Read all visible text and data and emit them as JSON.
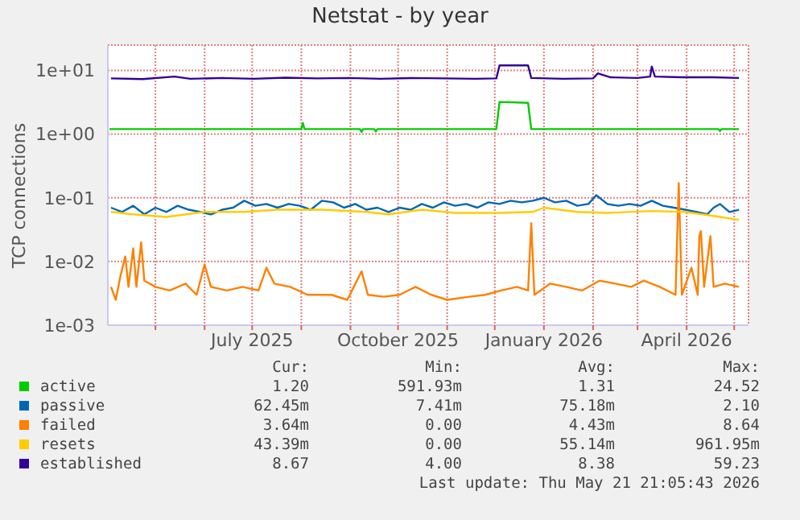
{
  "chart_data": {
    "type": "line",
    "title": "Netstat - by year",
    "ylabel": "TCP connections",
    "log": true,
    "grid": true,
    "legend": "bottom",
    "xlim": [
      "2025-04-01",
      "2026-05-10"
    ],
    "xticks": [
      {
        "value": "2025-05",
        "label": null
      },
      {
        "value": "2025-06",
        "label": null
      },
      {
        "value": "2025-07",
        "label": "July 2025"
      },
      {
        "value": "2025-08",
        "label": null
      },
      {
        "value": "2025-09",
        "label": null
      },
      {
        "value": "2025-10",
        "label": "October 2025"
      },
      {
        "value": "2025-11",
        "label": null
      },
      {
        "value": "2025-12",
        "label": null
      },
      {
        "value": "2026-01",
        "label": "January 2026"
      },
      {
        "value": "2026-02",
        "label": null
      },
      {
        "value": "2026-03",
        "label": null
      },
      {
        "value": "2026-04",
        "label": "April 2026"
      },
      {
        "value": "2026-05",
        "label": null
      }
    ],
    "ylim": [
      0.001,
      25
    ],
    "yticks": [
      {
        "value": 0.001,
        "label": "1e-03"
      },
      {
        "value": 0.01,
        "label": "1e-02"
      },
      {
        "value": 0.1,
        "label": "1e-01"
      },
      {
        "value": 1,
        "label": "1e+00"
      },
      {
        "value": 10,
        "label": "1e+01"
      }
    ],
    "series": [
      {
        "name": "active",
        "color": "#00cc00",
        "x": [
          "2025-04-02",
          "2025-08-01",
          "2025-08-02",
          "2025-08-03",
          "2025-09-07",
          "2025-09-08",
          "2025-09-09",
          "2025-09-16",
          "2025-09-17",
          "2025-09-18",
          "2025-12-02",
          "2025-12-04",
          "2025-12-22",
          "2025-12-24",
          "2026-04-21",
          "2026-04-22",
          "2026-04-23",
          "2026-05-04"
        ],
        "values": [
          1.2,
          1.2,
          1.5,
          1.2,
          1.2,
          1.08,
          1.2,
          1.2,
          1.1,
          1.2,
          1.2,
          3.2,
          3.1,
          1.2,
          1.2,
          1.12,
          1.2,
          1.2
        ]
      },
      {
        "name": "passive",
        "color": "#0066b3",
        "x": [
          "2025-04-03",
          "2025-04-10",
          "2025-04-17",
          "2025-04-24",
          "2025-05-01",
          "2025-05-08",
          "2025-05-15",
          "2025-05-22",
          "2025-05-29",
          "2025-06-05",
          "2025-06-12",
          "2025-06-19",
          "2025-06-26",
          "2025-07-03",
          "2025-07-10",
          "2025-07-17",
          "2025-07-24",
          "2025-07-31",
          "2025-08-07",
          "2025-08-14",
          "2025-08-21",
          "2025-08-28",
          "2025-09-04",
          "2025-09-11",
          "2025-09-18",
          "2025-09-25",
          "2025-10-02",
          "2025-10-09",
          "2025-10-16",
          "2025-10-23",
          "2025-10-30",
          "2025-11-06",
          "2025-11-13",
          "2025-11-20",
          "2025-11-27",
          "2025-12-04",
          "2025-12-11",
          "2025-12-18",
          "2025-12-25",
          "2026-01-01",
          "2026-01-08",
          "2026-01-15",
          "2026-01-22",
          "2026-01-29",
          "2026-02-03",
          "2026-02-10",
          "2026-02-17",
          "2026-02-24",
          "2026-03-03",
          "2026-03-10",
          "2026-03-17",
          "2026-03-24",
          "2026-03-31",
          "2026-04-07",
          "2026-04-14",
          "2026-04-18",
          "2026-04-22",
          "2026-04-28",
          "2026-05-04"
        ],
        "values": [
          0.07,
          0.06,
          0.075,
          0.055,
          0.07,
          0.06,
          0.075,
          0.065,
          0.06,
          0.055,
          0.065,
          0.07,
          0.09,
          0.075,
          0.08,
          0.07,
          0.08,
          0.075,
          0.065,
          0.09,
          0.085,
          0.07,
          0.08,
          0.065,
          0.07,
          0.06,
          0.07,
          0.065,
          0.08,
          0.07,
          0.085,
          0.075,
          0.08,
          0.07,
          0.085,
          0.08,
          0.09,
          0.085,
          0.09,
          0.1,
          0.085,
          0.09,
          0.075,
          0.08,
          0.11,
          0.08,
          0.075,
          0.08,
          0.075,
          0.09,
          0.075,
          0.07,
          0.065,
          0.06,
          0.055,
          0.07,
          0.08,
          0.06,
          0.065
        ]
      },
      {
        "name": "failed",
        "color": "#ff8000",
        "x": [
          "2025-04-03",
          "2025-04-06",
          "2025-04-09",
          "2025-04-12",
          "2025-04-14",
          "2025-04-17",
          "2025-04-19",
          "2025-04-22",
          "2025-04-24",
          "2025-05-01",
          "2025-05-10",
          "2025-05-20",
          "2025-05-27",
          "2025-06-01",
          "2025-06-05",
          "2025-06-15",
          "2025-06-25",
          "2025-07-05",
          "2025-07-10",
          "2025-07-15",
          "2025-07-25",
          "2025-08-05",
          "2025-08-20",
          "2025-08-30",
          "2025-09-08",
          "2025-09-12",
          "2025-09-22",
          "2025-10-02",
          "2025-10-12",
          "2025-10-22",
          "2025-11-01",
          "2025-11-15",
          "2025-11-25",
          "2025-12-05",
          "2025-12-15",
          "2025-12-22",
          "2025-12-24",
          "2025-12-26",
          "2026-01-05",
          "2026-01-15",
          "2026-01-25",
          "2026-02-05",
          "2026-02-15",
          "2026-02-25",
          "2026-03-05",
          "2026-03-15",
          "2026-03-25",
          "2026-03-27",
          "2026-03-29",
          "2026-04-04",
          "2026-04-08",
          "2026-04-09",
          "2026-04-10",
          "2026-04-12",
          "2026-04-16",
          "2026-04-18",
          "2026-04-25",
          "2026-05-04"
        ],
        "values": [
          0.004,
          0.0025,
          0.006,
          0.012,
          0.004,
          0.016,
          0.004,
          0.02,
          0.005,
          0.004,
          0.0035,
          0.0045,
          0.003,
          0.009,
          0.004,
          0.0035,
          0.004,
          0.0035,
          0.008,
          0.0045,
          0.004,
          0.003,
          0.003,
          0.0025,
          0.007,
          0.003,
          0.0028,
          0.003,
          0.004,
          0.003,
          0.0025,
          0.0028,
          0.003,
          0.0035,
          0.004,
          0.0035,
          0.04,
          0.003,
          0.0045,
          0.004,
          0.0035,
          0.005,
          0.0045,
          0.004,
          0.005,
          0.004,
          0.003,
          0.17,
          0.003,
          0.008,
          0.003,
          0.025,
          0.03,
          0.004,
          0.025,
          0.004,
          0.0045,
          0.004
        ]
      },
      {
        "name": "resets",
        "color": "#ffcc00",
        "x": [
          "2025-04-03",
          "2025-04-17",
          "2025-05-08",
          "2025-06-01",
          "2025-06-26",
          "2025-07-17",
          "2025-08-14",
          "2025-09-11",
          "2025-09-25",
          "2025-10-16",
          "2025-11-06",
          "2025-12-04",
          "2025-12-25",
          "2026-01-01",
          "2026-01-22",
          "2026-02-10",
          "2026-03-10",
          "2026-03-31",
          "2026-04-18",
          "2026-05-04"
        ],
        "values": [
          0.06,
          0.055,
          0.05,
          0.06,
          0.06,
          0.065,
          0.065,
          0.06,
          0.055,
          0.065,
          0.058,
          0.058,
          0.06,
          0.07,
          0.06,
          0.058,
          0.062,
          0.06,
          0.052,
          0.045
        ]
      },
      {
        "name": "established",
        "color": "#330099",
        "x": [
          "2025-04-03",
          "2025-04-23",
          "2025-05-13",
          "2025-05-23",
          "2025-06-12",
          "2025-07-02",
          "2025-07-22",
          "2025-08-11",
          "2025-08-31",
          "2025-09-20",
          "2025-10-10",
          "2025-10-30",
          "2025-11-19",
          "2025-12-02",
          "2025-12-04",
          "2025-12-22",
          "2025-12-24",
          "2026-01-13",
          "2026-02-01",
          "2026-02-04",
          "2026-02-12",
          "2026-03-01",
          "2026-03-09",
          "2026-03-10",
          "2026-03-12",
          "2026-03-29",
          "2026-04-18",
          "2026-05-04"
        ],
        "values": [
          7.5,
          7.3,
          8.0,
          7.4,
          7.6,
          7.4,
          7.7,
          7.5,
          7.6,
          7.4,
          7.6,
          7.5,
          7.4,
          7.5,
          12,
          12,
          7.6,
          7.4,
          7.5,
          9,
          7.8,
          7.6,
          8,
          11.5,
          8,
          7.8,
          7.8,
          7.6
        ]
      }
    ],
    "annotations": [
      "Cur:",
      "Min:",
      "Avg:",
      "Max:",
      "1.20",
      "591.93m",
      "1.31",
      "24.52",
      "62.45m",
      "7.41m",
      "75.18m",
      "2.10",
      "3.64m",
      "0.00",
      "4.43m",
      "8.64",
      "43.39m",
      "0.00",
      "55.14m",
      "961.95m",
      "8.67",
      "4.00",
      "8.38",
      "59.23",
      "Last update: Thu May 21 21:05:43 2026"
    ]
  }
}
